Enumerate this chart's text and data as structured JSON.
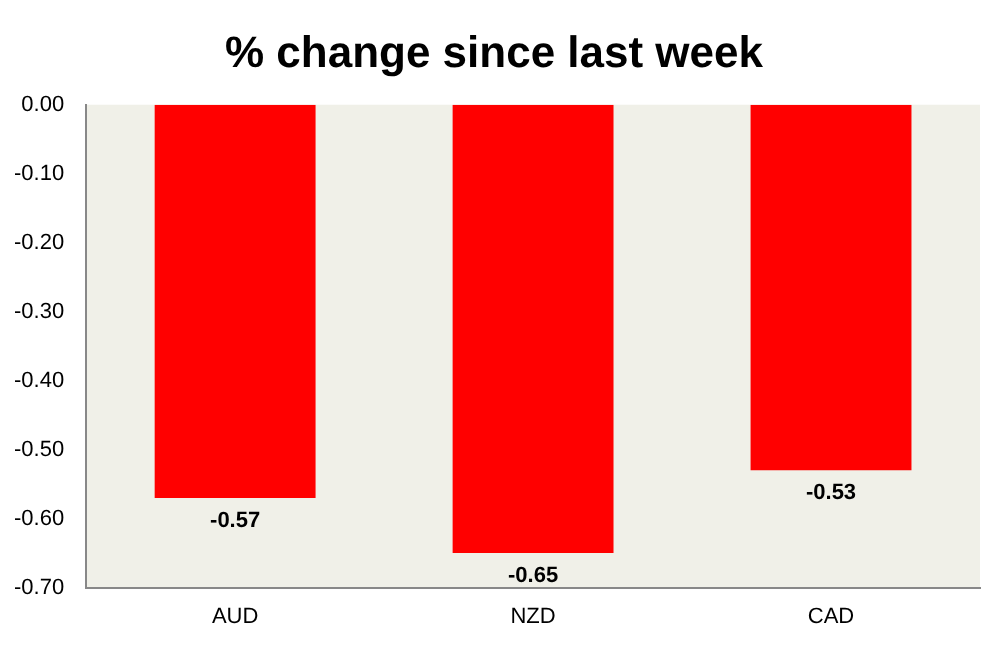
{
  "chart_data": {
    "type": "bar",
    "title": "% change since last week",
    "categories": [
      "AUD",
      "NZD",
      "CAD"
    ],
    "values": [
      -0.57,
      -0.65,
      -0.53
    ],
    "color": "#ff0000",
    "data_labels": true,
    "ylim": [
      -0.7,
      0
    ],
    "yticks": [
      {
        "value": 0,
        "label": "0.00"
      },
      {
        "value": -0.1,
        "label": "-0.10"
      },
      {
        "value": -0.2,
        "label": "-0.20"
      },
      {
        "value": -0.3,
        "label": "-0.30"
      },
      {
        "value": -0.4,
        "label": "-0.40"
      },
      {
        "value": -0.5,
        "label": "-0.50"
      },
      {
        "value": -0.6,
        "label": "-0.60"
      },
      {
        "value": -0.7,
        "label": "-0.70"
      }
    ],
    "grid": false
  }
}
